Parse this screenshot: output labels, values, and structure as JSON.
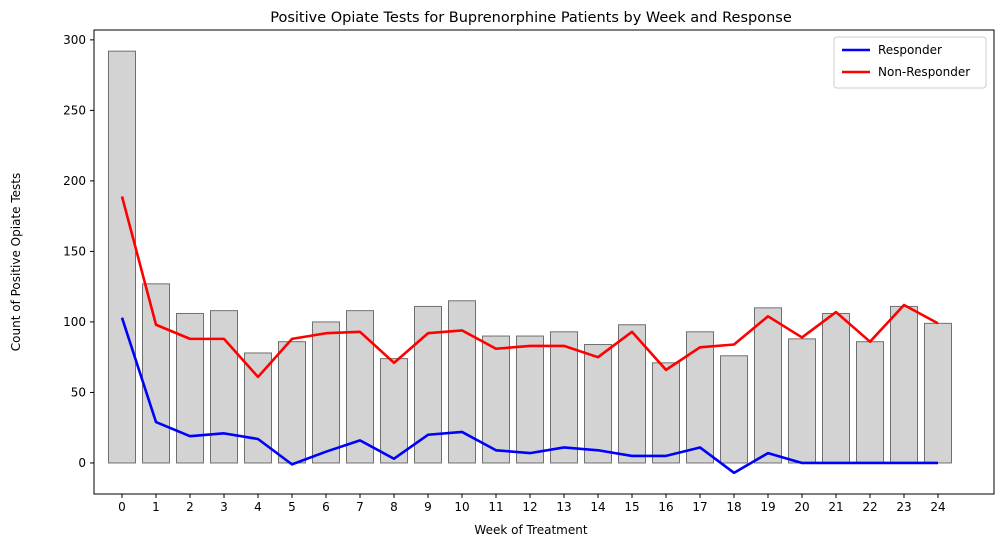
{
  "chart_data": {
    "type": "bar",
    "title": "Positive Opiate Tests for Buprenorphine Patients by Week and Response",
    "xlabel": "Week of Treatment",
    "ylabel": "Count of Positive Opiate Tests",
    "categories": [
      0,
      1,
      2,
      3,
      4,
      5,
      6,
      7,
      8,
      9,
      10,
      11,
      12,
      13,
      14,
      15,
      16,
      17,
      18,
      19,
      20,
      21,
      22,
      23,
      24
    ],
    "bar_values": [
      292,
      127,
      106,
      108,
      78,
      86,
      100,
      108,
      74,
      111,
      115,
      90,
      90,
      93,
      84,
      98,
      71,
      93,
      76,
      110,
      88,
      106,
      86,
      111,
      99
    ],
    "series": [
      {
        "name": "Responder",
        "color": "#0000ff",
        "values": [
          103,
          29,
          19,
          21,
          17,
          -1,
          8,
          16,
          3,
          20,
          22,
          9,
          7,
          11,
          9,
          5,
          5,
          11,
          -7,
          7,
          0,
          0,
          0,
          0,
          0
        ]
      },
      {
        "name": "Non-Responder",
        "color": "#ff0000",
        "values": [
          189,
          98,
          88,
          88,
          61,
          88,
          92,
          93,
          71,
          92,
          94,
          81,
          83,
          83,
          75,
          93,
          66,
          82,
          84,
          104,
          89,
          107,
          86,
          112,
          99
        ]
      }
    ],
    "bar_color": "#d3d3d3",
    "bar_edge_color": "#707070",
    "ylim": [
      -22,
      307
    ],
    "yticks": [
      0,
      50,
      100,
      150,
      200,
      250,
      300
    ],
    "legend_position": "top-right",
    "grid": false
  }
}
